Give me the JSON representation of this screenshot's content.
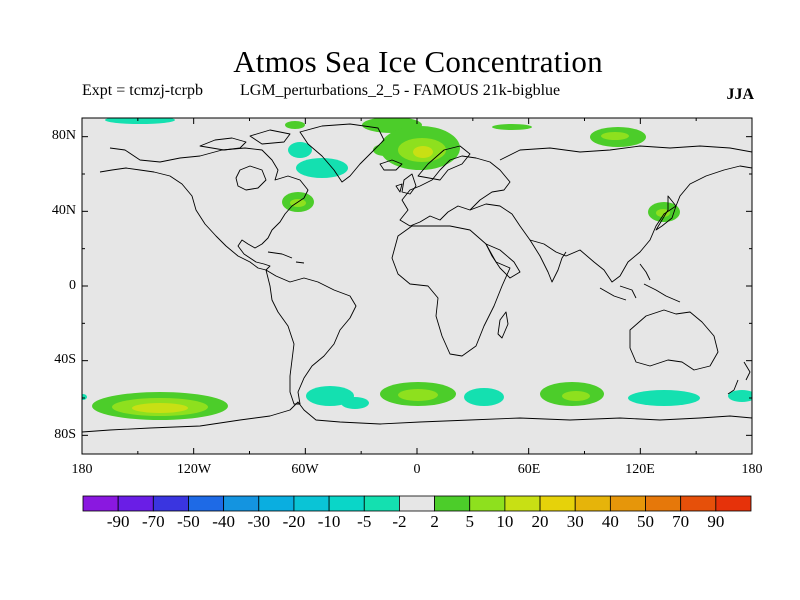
{
  "title": "Atmos Sea Ice Concentration",
  "subtitle_left": "Expt = tcmzj-tcrpb",
  "subtitle_center": "LGM_perturbations_2_5 - FAMOUS 21k-bigblue",
  "season": "JJA",
  "map": {
    "projection": "cylindrical equidistant",
    "lon_range": [
      -180,
      180
    ],
    "lat_range": [
      -90,
      90
    ],
    "background_color": "#e6e6e6",
    "coastline_color": "#000000",
    "y_ticks": [
      "80N",
      "40N",
      "0",
      "40S",
      "80S"
    ],
    "x_ticks": [
      "180",
      "120W",
      "60W",
      "0",
      "60E",
      "120E",
      "180"
    ]
  },
  "colorbar": {
    "colors": [
      "#8a18e0",
      "#6a1ee6",
      "#3a35e0",
      "#1e6ae6",
      "#1494e0",
      "#0aaee0",
      "#0ac4d6",
      "#0ad6c8",
      "#14e0b0",
      "#e6e6e6",
      "#4ccd2a",
      "#8ee01e",
      "#c8e014",
      "#e6d20a",
      "#e6b40a",
      "#e6960a",
      "#e6780a",
      "#e6500a",
      "#e6320a"
    ],
    "labels": [
      "-90",
      "-70",
      "-50",
      "-40",
      "-30",
      "-20",
      "-10",
      "-5",
      "-2",
      "2",
      "5",
      "10",
      "20",
      "30",
      "40",
      "50",
      "70",
      "90"
    ]
  }
}
